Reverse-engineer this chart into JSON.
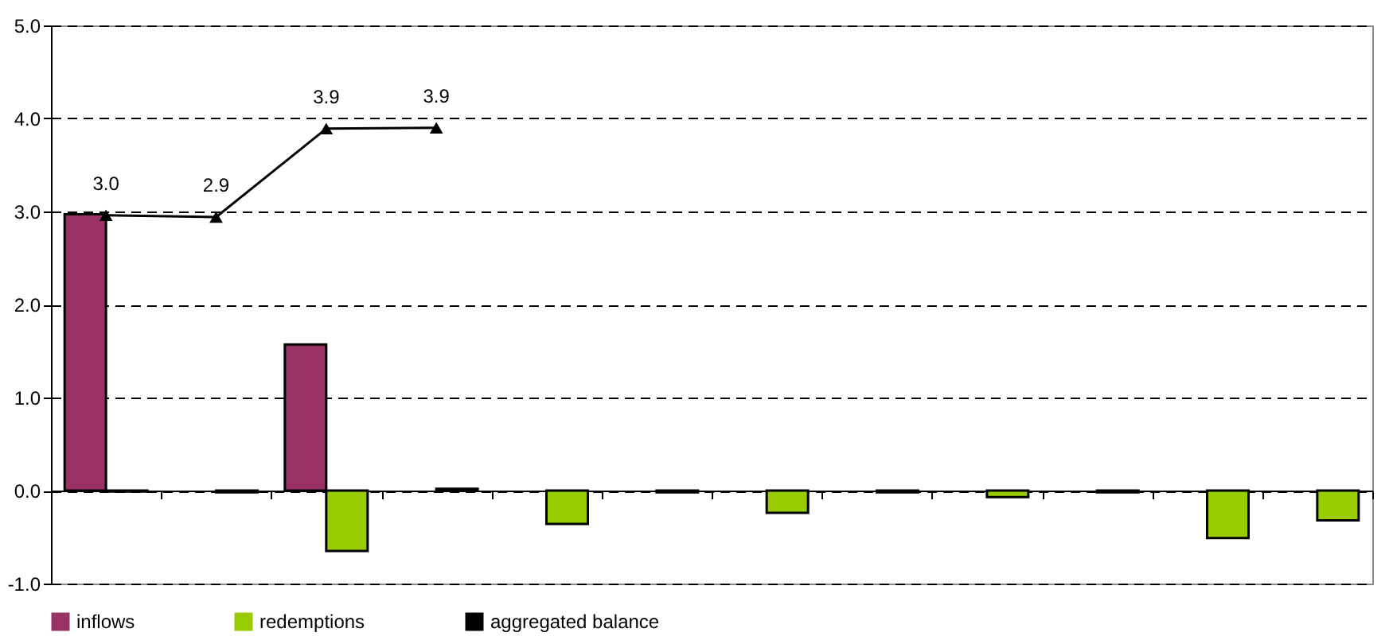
{
  "chart_data": {
    "type": "bar",
    "categories": [
      null,
      null,
      null,
      null,
      null,
      null,
      null,
      null,
      null,
      null,
      null,
      null
    ],
    "series": [
      {
        "name": "inflows",
        "color": "#993366",
        "values": [
          2.97,
          null,
          1.57,
          null,
          null,
          null,
          null,
          null,
          null,
          null,
          null,
          null
        ]
      },
      {
        "name": "redemptions",
        "color": "#99cc00",
        "values": [
          -0.01,
          -0.02,
          -0.65,
          0.02,
          -0.36,
          -0.02,
          -0.24,
          -0.02,
          -0.07,
          -0.02,
          -0.51,
          -0.32
        ]
      },
      {
        "name": "aggregated balance",
        "type": "line",
        "color": "#000000",
        "marker": "triangle",
        "values": [
          2.96,
          2.94,
          3.89,
          3.9,
          null,
          null,
          null,
          null,
          null,
          null,
          null,
          null
        ],
        "value_labels": [
          "3.0",
          "2.9",
          "3.9",
          "3.9",
          null,
          null,
          null,
          null,
          null,
          null,
          null,
          null
        ]
      }
    ],
    "ylim": [
      -1,
      5
    ],
    "yticks": [
      {
        "value": -1,
        "label": "-1.0"
      },
      {
        "value": 0,
        "label": "0.0"
      },
      {
        "value": 1,
        "label": "1.0"
      },
      {
        "value": 2,
        "label": "2.0"
      },
      {
        "value": 3,
        "label": "3.0"
      },
      {
        "value": 4,
        "label": "4.0"
      },
      {
        "value": 5,
        "label": "5.0"
      }
    ],
    "grid": "y",
    "legend": "bottom",
    "tick_labels": "y"
  }
}
